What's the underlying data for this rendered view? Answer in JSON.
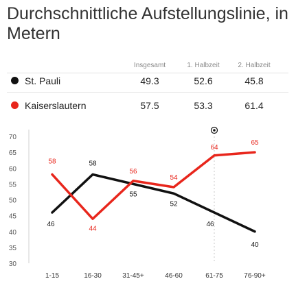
{
  "title": "Durchschnittliche Aufstellungslinie, in Metern",
  "table": {
    "columns": [
      "Insgesamt",
      "1. Halbzeit",
      "2. Halbzeit"
    ],
    "rows": [
      {
        "team": "St. Pauli",
        "color": "#111111",
        "values": [
          "49.3",
          "52.6",
          "45.8"
        ]
      },
      {
        "team": "Kaiserslautern",
        "color": "#e8261c",
        "values": [
          "57.5",
          "53.3",
          "61.4"
        ]
      }
    ]
  },
  "chart_data": {
    "type": "line",
    "categories": [
      "1-15",
      "16-30",
      "31-45+",
      "46-60",
      "61-75",
      "76-90+"
    ],
    "yticks": [
      30,
      35,
      40,
      45,
      50,
      55,
      60,
      65,
      70
    ],
    "ylim": [
      30,
      70
    ],
    "series": [
      {
        "name": "St. Pauli",
        "color": "#111111",
        "values": [
          46,
          58,
          55,
          52,
          46,
          40
        ]
      },
      {
        "name": "Kaiserslautern",
        "color": "#e8261c",
        "values": [
          58,
          44,
          56,
          54,
          64,
          65
        ]
      }
    ],
    "annotations": [
      {
        "category_index": 4,
        "icon": "soccer-ball-icon"
      }
    ]
  }
}
